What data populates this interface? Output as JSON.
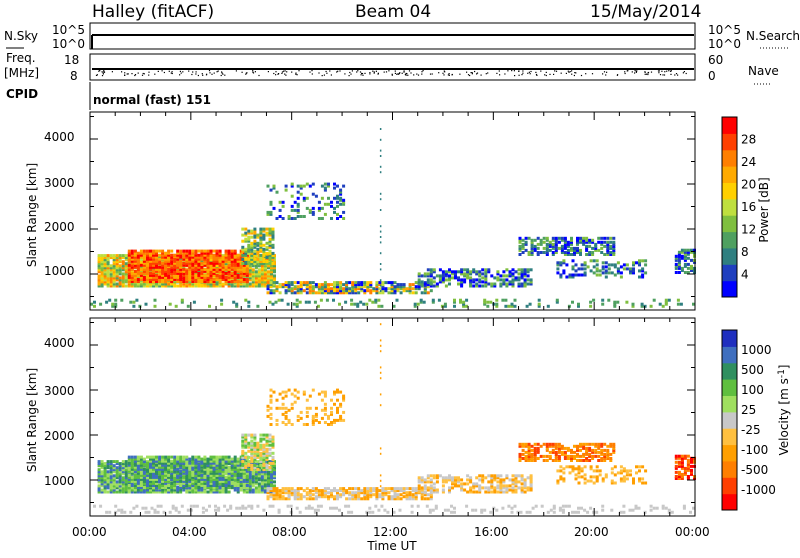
{
  "header": {
    "station": "Halley (fitACF)",
    "beam": "Beam 04",
    "date": "15/May/2014"
  },
  "noise_panel": {
    "left_label": "N.Sky",
    "left_ticks": [
      "10^5",
      "10^0"
    ],
    "right_ticks": [
      "10^5",
      "10^0"
    ],
    "right_label": "N.Search"
  },
  "freq_panel": {
    "left_label_1": "Freq.",
    "left_label_2": "[MHz]",
    "left_ticks": [
      "18",
      "8"
    ],
    "right_ticks": [
      "60",
      "0"
    ],
    "right_label": "Nave"
  },
  "cpid": {
    "label": "CPID",
    "value": "normal (fast) 151"
  },
  "x_axis": {
    "label": "Time UT",
    "ticks": [
      "00:00",
      "04:00",
      "08:00",
      "12:00",
      "16:00",
      "20:00",
      "00:00"
    ]
  },
  "chart_data": [
    {
      "type": "heatmap",
      "title": "Power",
      "ylabel": "Slant Range [km]",
      "ylim": [
        200,
        4600
      ],
      "yticks": [
        "1000",
        "2000",
        "3000",
        "4000"
      ],
      "xlabel": "Time UT",
      "xlim": [
        0,
        24
      ],
      "colorbar": {
        "label": "Power [dB]",
        "ticks": [
          "4",
          "8",
          "12",
          "16",
          "20",
          "24",
          "28"
        ],
        "colors": [
          "#0000ff",
          "#1f3fbf",
          "#2f7f80",
          "#4fa060",
          "#7fbf3f",
          "#bfdf3f",
          "#ffd000",
          "#ffaa00",
          "#ff7f00",
          "#ff4000",
          "#ff0000"
        ]
      }
    },
    {
      "type": "heatmap",
      "title": "Velocity",
      "ylabel": "Slant Range [km]",
      "ylim": [
        200,
        4600
      ],
      "yticks": [
        "1000",
        "2000",
        "3000",
        "4000"
      ],
      "xlabel": "Time UT",
      "xlim": [
        0,
        24
      ],
      "colorbar": {
        "label": "Velocity [m s",
        "label_sup": "-1",
        "label_end": "]",
        "ticks": [
          "1000",
          "500",
          "100",
          "25",
          "-25",
          "-100",
          "-500",
          "-1000"
        ],
        "colors": [
          "#1f2fbf",
          "#3f6fbf",
          "#2f8f5f",
          "#5fbf3f",
          "#9fdf5f",
          "#c8c8c8",
          "#ffc040",
          "#ff9f00",
          "#ff7f00",
          "#ff3f00",
          "#ff0000"
        ]
      }
    }
  ]
}
